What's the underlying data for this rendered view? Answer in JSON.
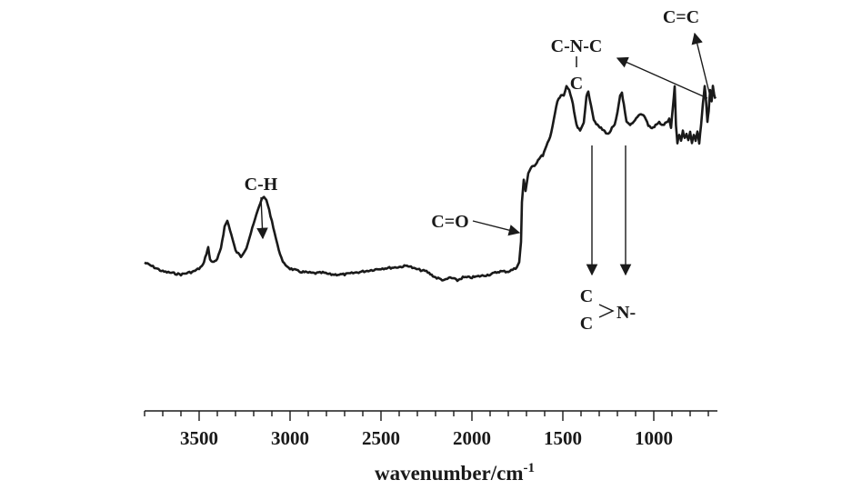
{
  "chart_data": {
    "type": "line",
    "title": "",
    "ylabel": "",
    "xlabel": {
      "text": "wavenumber/cm",
      "superscript": "-1"
    },
    "x_axis": {
      "range": [
        3800,
        650
      ],
      "reversed": true,
      "major_ticks": [
        3500,
        3000,
        2500,
        2000,
        1500,
        1000
      ],
      "tick_labels": [
        "3500",
        "3000",
        "2500",
        "2000",
        "1500",
        "1000"
      ],
      "minor_tick_step": 100
    },
    "y_axis": {
      "visible": false,
      "range": [
        0,
        1
      ]
    },
    "grid": false,
    "series": [
      {
        "color": "#1a1a1a",
        "points": [
          [
            3800,
            0.4
          ],
          [
            3700,
            0.37
          ],
          [
            3600,
            0.36
          ],
          [
            3530,
            0.37
          ],
          [
            3500,
            0.38
          ],
          [
            3480,
            0.39
          ],
          [
            3460,
            0.43
          ],
          [
            3450,
            0.45
          ],
          [
            3440,
            0.41
          ],
          [
            3420,
            0.4
          ],
          [
            3400,
            0.41
          ],
          [
            3380,
            0.45
          ],
          [
            3360,
            0.52
          ],
          [
            3345,
            0.54
          ],
          [
            3330,
            0.51
          ],
          [
            3300,
            0.44
          ],
          [
            3270,
            0.42
          ],
          [
            3240,
            0.45
          ],
          [
            3200,
            0.53
          ],
          [
            3170,
            0.59
          ],
          [
            3150,
            0.62
          ],
          [
            3130,
            0.61
          ],
          [
            3100,
            0.54
          ],
          [
            3070,
            0.46
          ],
          [
            3040,
            0.4
          ],
          [
            3000,
            0.38
          ],
          [
            2950,
            0.37
          ],
          [
            2900,
            0.366
          ],
          [
            2860,
            0.364
          ],
          [
            2820,
            0.366
          ],
          [
            2780,
            0.36
          ],
          [
            2700,
            0.36
          ],
          [
            2600,
            0.37
          ],
          [
            2500,
            0.38
          ],
          [
            2400,
            0.385
          ],
          [
            2350,
            0.39
          ],
          [
            2320,
            0.38
          ],
          [
            2250,
            0.37
          ],
          [
            2200,
            0.35
          ],
          [
            2150,
            0.34
          ],
          [
            2120,
            0.35
          ],
          [
            2080,
            0.34
          ],
          [
            2050,
            0.35
          ],
          [
            2000,
            0.35
          ],
          [
            1950,
            0.355
          ],
          [
            1900,
            0.36
          ],
          [
            1850,
            0.37
          ],
          [
            1800,
            0.37
          ],
          [
            1760,
            0.38
          ],
          [
            1740,
            0.4
          ],
          [
            1730,
            0.47
          ],
          [
            1725,
            0.6
          ],
          [
            1715,
            0.68
          ],
          [
            1705,
            0.64
          ],
          [
            1690,
            0.7
          ],
          [
            1670,
            0.72
          ],
          [
            1650,
            0.73
          ],
          [
            1630,
            0.75
          ],
          [
            1610,
            0.76
          ],
          [
            1590,
            0.79
          ],
          [
            1570,
            0.82
          ],
          [
            1550,
            0.88
          ],
          [
            1530,
            0.94
          ],
          [
            1510,
            0.96
          ],
          [
            1495,
            0.96
          ],
          [
            1480,
            0.99
          ],
          [
            1465,
            0.98
          ],
          [
            1445,
            0.93
          ],
          [
            1425,
            0.86
          ],
          [
            1405,
            0.84
          ],
          [
            1385,
            0.87
          ],
          [
            1370,
            0.96
          ],
          [
            1360,
            0.97
          ],
          [
            1345,
            0.93
          ],
          [
            1330,
            0.88
          ],
          [
            1310,
            0.86
          ],
          [
            1290,
            0.85
          ],
          [
            1270,
            0.84
          ],
          [
            1250,
            0.83
          ],
          [
            1230,
            0.85
          ],
          [
            1215,
            0.86
          ],
          [
            1200,
            0.9
          ],
          [
            1185,
            0.96
          ],
          [
            1175,
            0.97
          ],
          [
            1165,
            0.93
          ],
          [
            1150,
            0.87
          ],
          [
            1130,
            0.86
          ],
          [
            1110,
            0.87
          ],
          [
            1090,
            0.89
          ],
          [
            1070,
            0.9
          ],
          [
            1050,
            0.89
          ],
          [
            1030,
            0.86
          ],
          [
            1010,
            0.85
          ],
          [
            990,
            0.86
          ],
          [
            970,
            0.87
          ],
          [
            950,
            0.86
          ],
          [
            930,
            0.87
          ],
          [
            915,
            0.88
          ],
          [
            905,
            0.85
          ],
          [
            895,
            0.92
          ],
          [
            885,
            0.99
          ],
          [
            878,
            0.86
          ],
          [
            870,
            0.8
          ],
          [
            860,
            0.83
          ],
          [
            850,
            0.81
          ],
          [
            840,
            0.84
          ],
          [
            830,
            0.82
          ],
          [
            820,
            0.83
          ],
          [
            810,
            0.81
          ],
          [
            800,
            0.84
          ],
          [
            790,
            0.8
          ],
          [
            780,
            0.83
          ],
          [
            770,
            0.81
          ],
          [
            760,
            0.84
          ],
          [
            750,
            0.8
          ],
          [
            740,
            0.86
          ],
          [
            730,
            0.93
          ],
          [
            720,
            0.99
          ],
          [
            712,
            0.94
          ],
          [
            705,
            0.87
          ],
          [
            698,
            0.91
          ],
          [
            690,
            0.98
          ],
          [
            682,
            0.94
          ],
          [
            675,
            0.99
          ],
          [
            668,
            0.96
          ],
          [
            660,
            0.95
          ]
        ]
      }
    ],
    "annotations": [
      {
        "label": "C-H",
        "wavenumber": 3140,
        "arrow": "down-to-peak"
      },
      {
        "label": "C=O",
        "wavenumber": 1725,
        "arrow": "right-to-peak"
      },
      {
        "label": "C-N-C",
        "sublabel": "C",
        "wavenumber": 690,
        "arrow": "from-peak-to-label"
      },
      {
        "label": "C=C",
        "wavenumber": 690,
        "arrow": "from-peak-to-label"
      },
      {
        "label_top": "C",
        "label_bottom": "C",
        "label_right": "N-",
        "wavenumbers": [
          1360,
          1170
        ],
        "arrow": "down-from-peaks"
      }
    ]
  }
}
